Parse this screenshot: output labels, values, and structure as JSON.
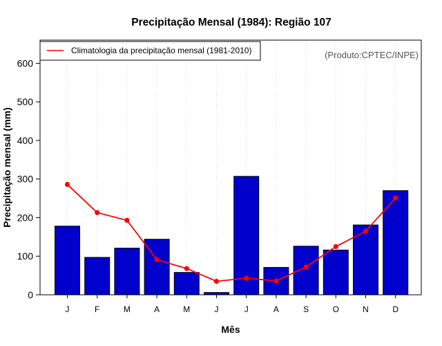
{
  "colors": {
    "bar_fill": "#0000cc",
    "bar_stroke": "#000000",
    "climatology_line": "#ff0000",
    "grid": "#d3d3d3",
    "source_text": "#555555"
  },
  "chart_data": {
    "type": "bar",
    "title": "Precipitação Mensal (1984): Região 107",
    "xlabel": "Mês",
    "ylabel": "Precipitação mensal (mm)",
    "ylim": [
      0,
      660
    ],
    "yticks": [
      0,
      100,
      200,
      300,
      400,
      500,
      600
    ],
    "grid": "vertical dotted",
    "categories": [
      "J",
      "F",
      "M",
      "A",
      "M",
      "J",
      "J",
      "A",
      "S",
      "O",
      "N",
      "D"
    ],
    "series": [
      {
        "name": "Precipitação mensal (1984)",
        "type": "bar",
        "values": [
          178,
          97,
          121,
          144,
          58,
          6,
          307,
          71,
          126,
          116,
          181,
          270
        ]
      },
      {
        "name": "Climatologia da precipitação mensal (1981-2010)",
        "type": "line",
        "values": [
          286,
          213,
          193,
          91,
          68,
          35,
          43,
          36,
          72,
          125,
          165,
          251
        ]
      }
    ],
    "legend": {
      "entry": "Climatologia da precipitação mensal (1981-2010)",
      "placement": "top-left"
    },
    "annotation": "(Produto:CPTEC/INPE)"
  }
}
